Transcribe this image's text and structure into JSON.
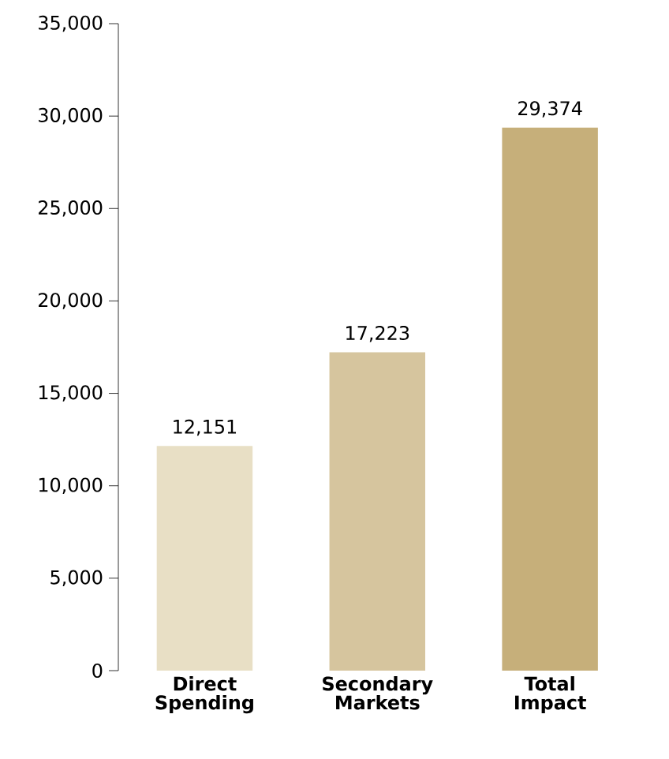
{
  "chart_data": {
    "type": "bar",
    "categories": [
      "Direct Spending",
      "Secondary Markets",
      "Total Impact"
    ],
    "values": [
      12151,
      17223,
      29374
    ],
    "colors": [
      "#e8dfc5",
      "#d6c59e",
      "#c6af7a"
    ],
    "ylim": [
      0,
      35000
    ],
    "yticks": [
      0,
      {
        "value": 5000,
        "label": "5,000"
      },
      {
        "value": 10000,
        "label": "10,000"
      },
      {
        "value": 15000,
        "label": "15,000"
      },
      {
        "value": 20000,
        "label": "20,000"
      },
      {
        "value": 25000,
        "label": "25,000"
      },
      {
        "value": 30000,
        "label": "30,000"
      },
      {
        "value": 35000,
        "label": "35,000"
      }
    ],
    "value_labels": [
      "12,151",
      "17,223",
      "29,374"
    ]
  }
}
